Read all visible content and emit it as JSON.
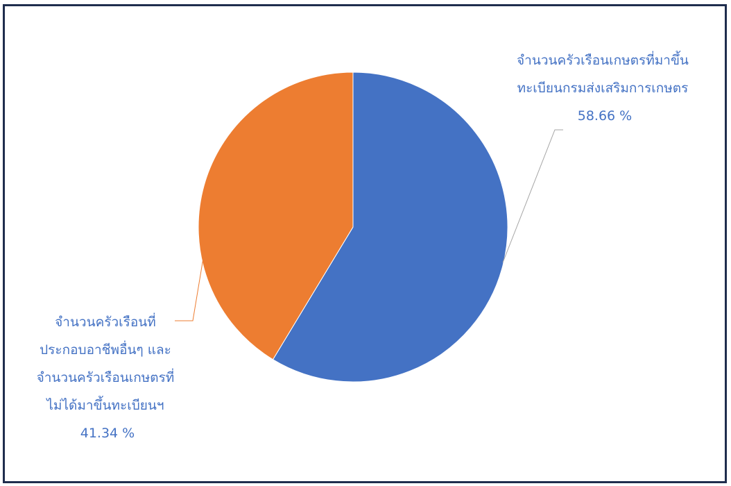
{
  "chart_data": {
    "type": "pie",
    "title": "",
    "slices": [
      {
        "label_lines": [
          "จำนวนครัวเรือนเกษตรที่มาขึ้น",
          "ทะเบียนกรมส่งเสริมการเกษตร"
        ],
        "value_text": "58.66 %",
        "value": 58.66,
        "color": "#4472c4"
      },
      {
        "label_lines": [
          "จำนวนครัวเรือนที่",
          "ประกอบอาชีพอื่นๆ และ",
          "จำนวนครัวเรือนเกษตรที่",
          "ไม่ได้มาขึ้นทะเบียนฯ"
        ],
        "value_text": "41.34 %",
        "value": 41.34,
        "color": "#ed7d31"
      }
    ],
    "label_color": "#4472c4",
    "leader_color": "#a5a5a5",
    "legend": false
  }
}
